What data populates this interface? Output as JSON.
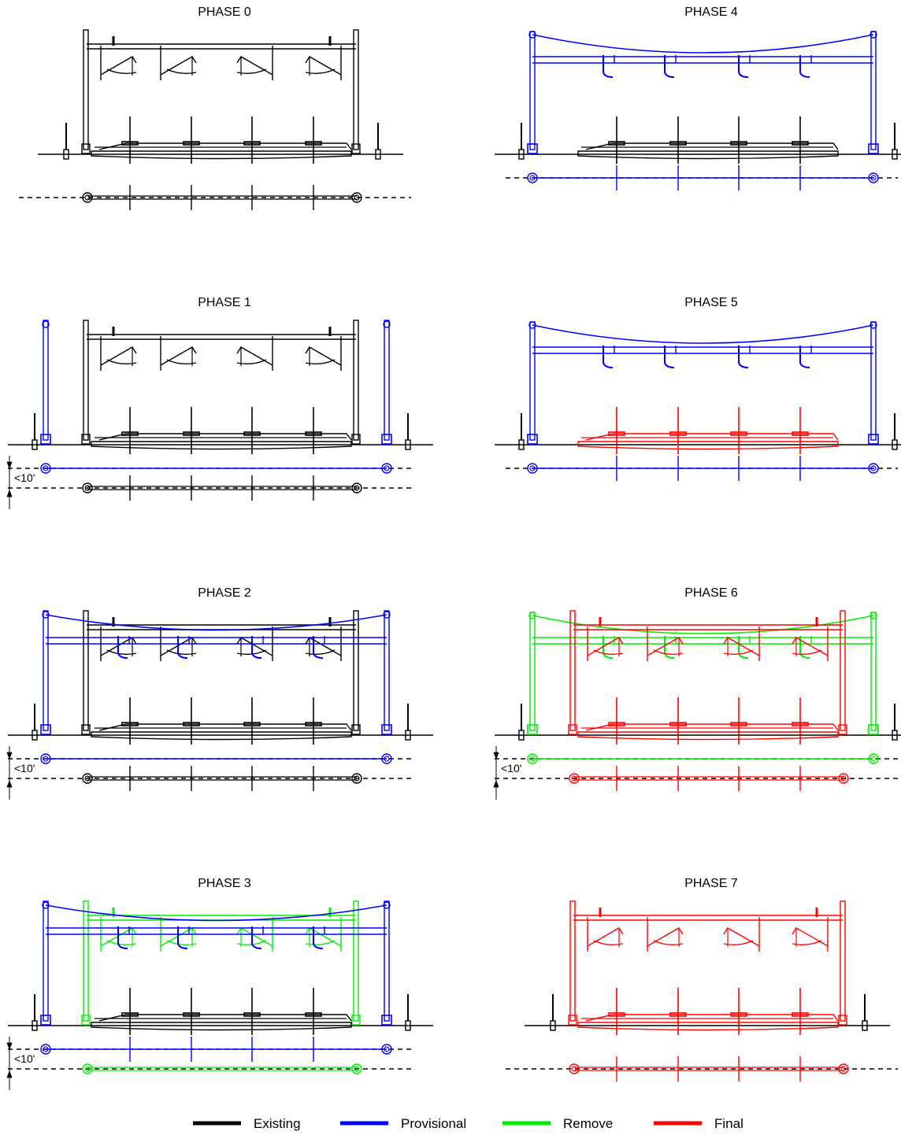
{
  "colors": {
    "existing": "#000000",
    "provisional": "#0000ff",
    "remove": "#00ee00",
    "final": "#ff0000"
  },
  "phases": [
    {
      "title": "PHASE 0",
      "layers": [
        {
          "kind": "main_gantry",
          "color": "existing"
        }
      ]
    },
    {
      "title": "PHASE 1",
      "layers": [
        {
          "kind": "main_gantry",
          "color": "existing"
        },
        {
          "kind": "wide_masts",
          "color": "provisional"
        }
      ],
      "dimension": "<10'"
    },
    {
      "title": "PHASE 2",
      "layers": [
        {
          "kind": "main_gantry",
          "color": "existing"
        },
        {
          "kind": "wide_span",
          "color": "provisional"
        }
      ],
      "dimension": "<10'"
    },
    {
      "title": "PHASE 3",
      "layers": [
        {
          "kind": "main_gantry_frame",
          "color": "remove"
        },
        {
          "kind": "track_bed",
          "color": "existing"
        },
        {
          "kind": "wide_span",
          "color": "provisional"
        }
      ],
      "dimension": "<10'"
    },
    {
      "title": "PHASE 4",
      "layers": [
        {
          "kind": "track_bed",
          "color": "existing"
        },
        {
          "kind": "span_only",
          "color": "provisional"
        }
      ]
    },
    {
      "title": "PHASE 5",
      "layers": [
        {
          "kind": "span_only",
          "color": "provisional"
        },
        {
          "kind": "track_bed",
          "color": "final"
        }
      ]
    },
    {
      "title": "PHASE 6",
      "layers": [
        {
          "kind": "span_only",
          "color": "remove"
        },
        {
          "kind": "main_gantry",
          "color": "final"
        }
      ],
      "dimension": "<10'"
    },
    {
      "title": "PHASE 7",
      "layers": [
        {
          "kind": "main_gantry",
          "color": "final"
        }
      ]
    }
  ],
  "legend": [
    {
      "label": "Existing",
      "color": "existing"
    },
    {
      "label": "Provisional",
      "color": "provisional"
    },
    {
      "label": "Remove",
      "color": "remove"
    },
    {
      "label": "Final",
      "color": "final"
    }
  ]
}
